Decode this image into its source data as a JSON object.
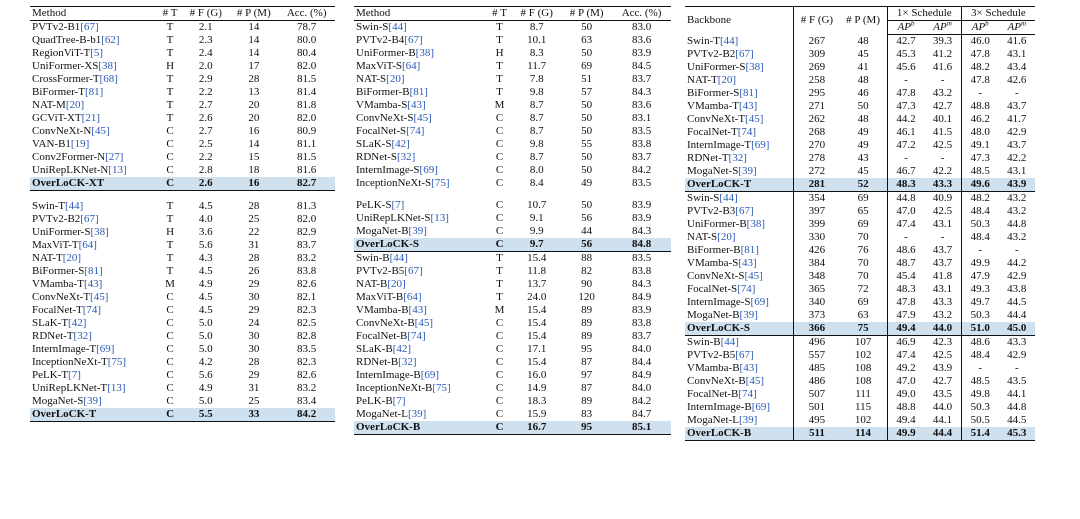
{
  "table1": {
    "headers": [
      "Method",
      "# T",
      "# F (G)",
      "# P (M)",
      "Acc. (%)"
    ],
    "groups": [
      [
        {
          "name": "PVTv2-B1",
          "ref": "[67]",
          "t": "T",
          "f": "2.1",
          "p": "14",
          "acc": "78.7"
        },
        {
          "name": "QuadTree-B-b1",
          "ref": "[62]",
          "t": "T",
          "f": "2.3",
          "p": "14",
          "acc": "80.0"
        },
        {
          "name": "RegionViT-T",
          "ref": "[5]",
          "t": "T",
          "f": "2.4",
          "p": "14",
          "acc": "80.4"
        },
        {
          "name": "UniFormer-XS",
          "ref": "[38]",
          "t": "H",
          "f": "2.0",
          "p": "17",
          "acc": "82.0"
        },
        {
          "name": "CrossFormer-T",
          "ref": "[68]",
          "t": "T",
          "f": "2.9",
          "p": "28",
          "acc": "81.5"
        },
        {
          "name": "BiFormer-T",
          "ref": "[81]",
          "t": "T",
          "f": "2.2",
          "p": "13",
          "acc": "81.4"
        },
        {
          "name": "NAT-M",
          "ref": "[20]",
          "t": "T",
          "f": "2.7",
          "p": "20",
          "acc": "81.8"
        },
        {
          "name": "GCViT-XT",
          "ref": "[21]",
          "t": "T",
          "f": "2.6",
          "p": "20",
          "acc": "82.0"
        },
        {
          "name": "ConvNeXt-N",
          "ref": "[45]",
          "t": "C",
          "f": "2.7",
          "p": "16",
          "acc": "80.9"
        },
        {
          "name": "VAN-B1",
          "ref": "[19]",
          "t": "C",
          "f": "2.5",
          "p": "14",
          "acc": "81.1"
        },
        {
          "name": "Conv2Former-N",
          "ref": "[27]",
          "t": "C",
          "f": "2.2",
          "p": "15",
          "acc": "81.5"
        },
        {
          "name": "UniRepLKNet-N",
          "ref": "[13]",
          "t": "C",
          "f": "2.8",
          "p": "18",
          "acc": "81.6"
        },
        {
          "name": "OverLoCK-XT",
          "ref": "",
          "t": "C",
          "f": "2.6",
          "p": "16",
          "acc": "82.7",
          "hl": true
        }
      ],
      [
        {
          "name": "Swin-T",
          "ref": "[44]",
          "t": "T",
          "f": "4.5",
          "p": "28",
          "acc": "81.3"
        },
        {
          "name": "PVTv2-B2",
          "ref": "[67]",
          "t": "T",
          "f": "4.0",
          "p": "25",
          "acc": "82.0"
        },
        {
          "name": "UniFormer-S",
          "ref": "[38]",
          "t": "H",
          "f": "3.6",
          "p": "22",
          "acc": "82.9"
        },
        {
          "name": "MaxViT-T",
          "ref": "[64]",
          "t": "T",
          "f": "5.6",
          "p": "31",
          "acc": "83.7"
        },
        {
          "name": "NAT-T",
          "ref": "[20]",
          "t": "T",
          "f": "4.3",
          "p": "28",
          "acc": "83.2"
        },
        {
          "name": "BiFormer-S",
          "ref": "[81]",
          "t": "T",
          "f": "4.5",
          "p": "26",
          "acc": "83.8"
        },
        {
          "name": "VMamba-T",
          "ref": "[43]",
          "t": "M",
          "f": "4.9",
          "p": "29",
          "acc": "82.6"
        },
        {
          "name": "ConvNeXt-T",
          "ref": "[45]",
          "t": "C",
          "f": "4.5",
          "p": "30",
          "acc": "82.1"
        },
        {
          "name": "FocalNet-T",
          "ref": "[74]",
          "t": "C",
          "f": "4.5",
          "p": "29",
          "acc": "82.3"
        },
        {
          "name": "SLaK-T",
          "ref": "[42]",
          "t": "C",
          "f": "5.0",
          "p": "24",
          "acc": "82.5"
        },
        {
          "name": "RDNet-T",
          "ref": "[32]",
          "t": "C",
          "f": "5.0",
          "p": "30",
          "acc": "82.8"
        },
        {
          "name": "InternImage-T",
          "ref": "[69]",
          "t": "C",
          "f": "5.0",
          "p": "30",
          "acc": "83.5"
        },
        {
          "name": "InceptionNeXt-T",
          "ref": "[75]",
          "t": "C",
          "f": "4.2",
          "p": "28",
          "acc": "82.3"
        },
        {
          "name": "PeLK-T",
          "ref": "[7]",
          "t": "C",
          "f": "5.6",
          "p": "29",
          "acc": "82.6"
        },
        {
          "name": "UniRepLKNet-T",
          "ref": "[13]",
          "t": "C",
          "f": "4.9",
          "p": "31",
          "acc": "83.2"
        },
        {
          "name": "MogaNet-S",
          "ref": "[39]",
          "t": "C",
          "f": "5.0",
          "p": "25",
          "acc": "83.4"
        },
        {
          "name": "OverLoCK-T",
          "ref": "",
          "t": "C",
          "f": "5.5",
          "p": "33",
          "acc": "84.2",
          "hl": true
        }
      ]
    ]
  },
  "table2": {
    "headers": [
      "Method",
      "# T",
      "# F (G)",
      "# P (M)",
      "Acc. (%)"
    ],
    "groups": [
      [
        {
          "name": "Swin-S",
          "ref": "[44]",
          "t": "T",
          "f": "8.7",
          "p": "50",
          "acc": "83.0"
        },
        {
          "name": "PVTv2-B4",
          "ref": "[67]",
          "t": "T",
          "f": "10.1",
          "p": "63",
          "acc": "83.6"
        },
        {
          "name": "UniFormer-B",
          "ref": "[38]",
          "t": "H",
          "f": "8.3",
          "p": "50",
          "acc": "83.9"
        },
        {
          "name": "MaxViT-S",
          "ref": "[64]",
          "t": "T",
          "f": "11.7",
          "p": "69",
          "acc": "84.5"
        },
        {
          "name": "NAT-S",
          "ref": "[20]",
          "t": "T",
          "f": "7.8",
          "p": "51",
          "acc": "83.7"
        },
        {
          "name": "BiFormer-B",
          "ref": "[81]",
          "t": "T",
          "f": "9.8",
          "p": "57",
          "acc": "84.3"
        },
        {
          "name": "VMamba-S",
          "ref": "[43]",
          "t": "M",
          "f": "8.7",
          "p": "50",
          "acc": "83.6"
        },
        {
          "name": "ConvNeXt-S",
          "ref": "[45]",
          "t": "C",
          "f": "8.7",
          "p": "50",
          "acc": "83.1"
        },
        {
          "name": "FocalNet-S",
          "ref": "[74]",
          "t": "C",
          "f": "8.7",
          "p": "50",
          "acc": "83.5"
        },
        {
          "name": "SLaK-S",
          "ref": "[42]",
          "t": "C",
          "f": "9.8",
          "p": "55",
          "acc": "83.8"
        },
        {
          "name": "RDNet-S",
          "ref": "[32]",
          "t": "C",
          "f": "8.7",
          "p": "50",
          "acc": "83.7"
        },
        {
          "name": "InternImage-S",
          "ref": "[69]",
          "t": "C",
          "f": "8.0",
          "p": "50",
          "acc": "84.2"
        },
        {
          "name": "InceptionNeXt-S",
          "ref": "[75]",
          "t": "C",
          "f": "8.4",
          "p": "49",
          "acc": "83.5"
        },
        {
          "name": "",
          "ref": "",
          "t": "",
          "f": "",
          "p": "",
          "acc": "",
          "blank": true
        },
        {
          "name": "PeLK-S",
          "ref": "[7]",
          "t": "C",
          "f": "10.7",
          "p": "50",
          "acc": "83.9"
        },
        {
          "name": "UniRepLKNet-S",
          "ref": "[13]",
          "t": "C",
          "f": "9.1",
          "p": "56",
          "acc": "83.9"
        },
        {
          "name": "MogaNet-B",
          "ref": "[39]",
          "t": "C",
          "f": "9.9",
          "p": "44",
          "acc": "84.3"
        },
        {
          "name": "OverLoCK-S",
          "ref": "",
          "t": "C",
          "f": "9.7",
          "p": "56",
          "acc": "84.8",
          "hl": true
        }
      ],
      [
        {
          "name": "Swin-B",
          "ref": "[44]",
          "t": "T",
          "f": "15.4",
          "p": "88",
          "acc": "83.5"
        },
        {
          "name": "PVTv2-B5",
          "ref": "[67]",
          "t": "T",
          "f": "11.8",
          "p": "82",
          "acc": "83.8"
        },
        {
          "name": "NAT-B",
          "ref": "[20]",
          "t": "T",
          "f": "13.7",
          "p": "90",
          "acc": "84.3"
        },
        {
          "name": "MaxViT-B",
          "ref": "[64]",
          "t": "T",
          "f": "24.0",
          "p": "120",
          "acc": "84.9"
        },
        {
          "name": "VMamba-B",
          "ref": "[43]",
          "t": "M",
          "f": "15.4",
          "p": "89",
          "acc": "83.9"
        },
        {
          "name": "ConvNeXt-B",
          "ref": "[45]",
          "t": "C",
          "f": "15.4",
          "p": "89",
          "acc": "83.8"
        },
        {
          "name": "FocalNet-B",
          "ref": "[74]",
          "t": "C",
          "f": "15.4",
          "p": "89",
          "acc": "83.7"
        },
        {
          "name": "SLaK-B",
          "ref": "[42]",
          "t": "C",
          "f": "17.1",
          "p": "95",
          "acc": "84.0"
        },
        {
          "name": "RDNet-B",
          "ref": "[32]",
          "t": "C",
          "f": "15.4",
          "p": "87",
          "acc": "84.4"
        },
        {
          "name": "InternImage-B",
          "ref": "[69]",
          "t": "C",
          "f": "16.0",
          "p": "97",
          "acc": "84.9"
        },
        {
          "name": "InceptionNeXt-B",
          "ref": "[75]",
          "t": "C",
          "f": "14.9",
          "p": "87",
          "acc": "84.0"
        },
        {
          "name": "PeLK-B",
          "ref": "[7]",
          "t": "C",
          "f": "18.3",
          "p": "89",
          "acc": "84.2"
        },
        {
          "name": "MogaNet-L",
          "ref": "[39]",
          "t": "C",
          "f": "15.9",
          "p": "83",
          "acc": "84.7"
        },
        {
          "name": "OverLoCK-B",
          "ref": "",
          "t": "C",
          "f": "16.7",
          "p": "95",
          "acc": "85.1",
          "hl": true
        }
      ]
    ]
  },
  "table3": {
    "headers": {
      "backbone": "Backbone",
      "flops": "# F (G)",
      "params": "# P (M)",
      "sched1": "1× Schedule",
      "sched3": "3× Schedule",
      "apb": "AP",
      "apb_sup": "b",
      "apm": "AP",
      "apm_sup": "m"
    },
    "groups": [
      [
        {
          "name": "Swin-T",
          "ref": "[44]",
          "f": "267",
          "p": "48",
          "v": [
            "42.7",
            "39.3",
            "46.0",
            "41.6"
          ]
        },
        {
          "name": "PVTv2-B2",
          "ref": "[67]",
          "f": "309",
          "p": "45",
          "v": [
            "45.3",
            "41.2",
            "47.8",
            "43.1"
          ]
        },
        {
          "name": "UniFormer-S",
          "ref": "[38]",
          "f": "269",
          "p": "41",
          "v": [
            "45.6",
            "41.6",
            "48.2",
            "43.4"
          ]
        },
        {
          "name": "NAT-T",
          "ref": "[20]",
          "f": "258",
          "p": "48",
          "v": [
            "-",
            "-",
            "47.8",
            "42.6"
          ]
        },
        {
          "name": "BiFormer-S",
          "ref": "[81]",
          "f": "295",
          "p": "46",
          "v": [
            "47.8",
            "43.2",
            "-",
            "-"
          ]
        },
        {
          "name": "VMamba-T",
          "ref": "[43]",
          "f": "271",
          "p": "50",
          "v": [
            "47.3",
            "42.7",
            "48.8",
            "43.7"
          ]
        },
        {
          "name": "ConvNeXt-T",
          "ref": "[45]",
          "f": "262",
          "p": "48",
          "v": [
            "44.2",
            "40.1",
            "46.2",
            "41.7"
          ]
        },
        {
          "name": "FocalNet-T",
          "ref": "[74]",
          "f": "268",
          "p": "49",
          "v": [
            "46.1",
            "41.5",
            "48.0",
            "42.9"
          ]
        },
        {
          "name": "InternImage-T",
          "ref": "[69]",
          "f": "270",
          "p": "49",
          "v": [
            "47.2",
            "42.5",
            "49.1",
            "43.7"
          ]
        },
        {
          "name": "RDNet-T",
          "ref": "[32]",
          "f": "278",
          "p": "43",
          "v": [
            "-",
            "-",
            "47.3",
            "42.2"
          ]
        },
        {
          "name": "MogaNet-S",
          "ref": "[39]",
          "f": "272",
          "p": "45",
          "v": [
            "46.7",
            "42.2",
            "48.5",
            "43.1"
          ]
        },
        {
          "name": "OverLoCK-T",
          "ref": "",
          "f": "281",
          "p": "52",
          "v": [
            "48.3",
            "43.3",
            "49.6",
            "43.9"
          ],
          "hl": true
        }
      ],
      [
        {
          "name": "Swin-S",
          "ref": "[44]",
          "f": "354",
          "p": "69",
          "v": [
            "44.8",
            "40.9",
            "48.2",
            "43.2"
          ]
        },
        {
          "name": "PVTv2-B3",
          "ref": "[67]",
          "f": "397",
          "p": "65",
          "v": [
            "47.0",
            "42.5",
            "48.4",
            "43.2"
          ]
        },
        {
          "name": "UniFormer-B",
          "ref": "[38]",
          "f": "399",
          "p": "69",
          "v": [
            "47.4",
            "43.1",
            "50.3",
            "44.8"
          ]
        },
        {
          "name": "NAT-S",
          "ref": "[20]",
          "f": "330",
          "p": "70",
          "v": [
            "-",
            "-",
            "48.4",
            "43.2"
          ]
        },
        {
          "name": "BiFormer-B",
          "ref": "[81]",
          "f": "426",
          "p": "76",
          "v": [
            "48.6",
            "43.7",
            "-",
            "-"
          ]
        },
        {
          "name": "VMamba-S",
          "ref": "[43]",
          "f": "384",
          "p": "70",
          "v": [
            "48.7",
            "43.7",
            "49.9",
            "44.2"
          ]
        },
        {
          "name": "ConvNeXt-S",
          "ref": "[45]",
          "f": "348",
          "p": "70",
          "v": [
            "45.4",
            "41.8",
            "47.9",
            "42.9"
          ]
        },
        {
          "name": "FocalNet-S",
          "ref": "[74]",
          "f": "365",
          "p": "72",
          "v": [
            "48.3",
            "43.1",
            "49.3",
            "43.8"
          ]
        },
        {
          "name": "InternImage-S",
          "ref": "[69]",
          "f": "340",
          "p": "69",
          "v": [
            "47.8",
            "43.3",
            "49.7",
            "44.5"
          ]
        },
        {
          "name": "MogaNet-B",
          "ref": "[39]",
          "f": "373",
          "p": "63",
          "v": [
            "47.9",
            "43.2",
            "50.3",
            "44.4"
          ]
        },
        {
          "name": "OverLoCK-S",
          "ref": "",
          "f": "366",
          "p": "75",
          "v": [
            "49.4",
            "44.0",
            "51.0",
            "45.0"
          ],
          "hl": true
        }
      ],
      [
        {
          "name": "Swin-B",
          "ref": "[44]",
          "f": "496",
          "p": "107",
          "v": [
            "46.9",
            "42.3",
            "48.6",
            "43.3"
          ]
        },
        {
          "name": "PVTv2-B5",
          "ref": "[67]",
          "f": "557",
          "p": "102",
          "v": [
            "47.4",
            "42.5",
            "48.4",
            "42.9"
          ]
        },
        {
          "name": "VMamba-B",
          "ref": "[43]",
          "f": "485",
          "p": "108",
          "v": [
            "49.2",
            "43.9",
            "-",
            "-"
          ]
        },
        {
          "name": "ConvNeXt-B",
          "ref": "[45]",
          "f": "486",
          "p": "108",
          "v": [
            "47.0",
            "42.7",
            "48.5",
            "43.5"
          ]
        },
        {
          "name": "FocalNet-B",
          "ref": "[74]",
          "f": "507",
          "p": "111",
          "v": [
            "49.0",
            "43.5",
            "49.8",
            "44.1"
          ]
        },
        {
          "name": "InternImage-B",
          "ref": "[69]",
          "f": "501",
          "p": "115",
          "v": [
            "48.8",
            "44.0",
            "50.3",
            "44.8"
          ]
        },
        {
          "name": "MogaNet-L",
          "ref": "[39]",
          "f": "495",
          "p": "102",
          "v": [
            "49.4",
            "44.1",
            "50.5",
            "44.5"
          ]
        },
        {
          "name": "OverLoCK-B",
          "ref": "",
          "f": "511",
          "p": "114",
          "v": [
            "49.9",
            "44.4",
            "51.4",
            "45.3"
          ],
          "hl": true
        }
      ]
    ]
  }
}
